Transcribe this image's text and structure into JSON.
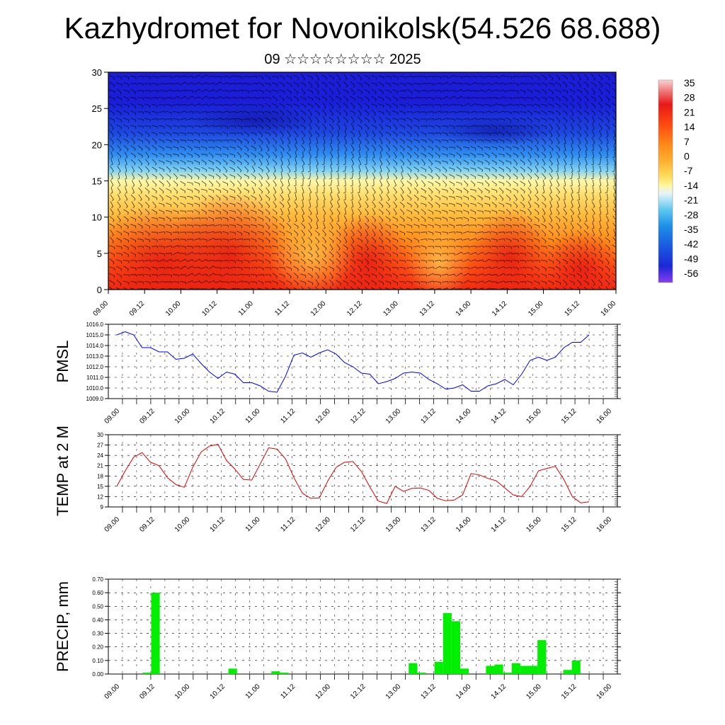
{
  "header": {
    "title": "Kazhydromet for Novonikolsk(54.526 68.688)",
    "subtitle": "09 ☆☆☆☆☆☆☆☆ 2025"
  },
  "time_ticks": [
    "09.00",
    "09.12",
    "10.00",
    "10.12",
    "11.00",
    "11.12",
    "12.00",
    "12.12",
    "13.00",
    "13.12",
    "14.00",
    "14.12",
    "15.00",
    "15.12",
    "16.00"
  ],
  "chart_data": [
    {
      "type": "heatmap",
      "name": "temperature-cross-section",
      "ylim": [
        0,
        30
      ],
      "yticks": [
        0,
        5,
        10,
        15,
        20,
        25,
        30
      ],
      "colorbar": {
        "labels": [
          "35",
          "28",
          "21",
          "14",
          "7",
          "0",
          "-7",
          "-14",
          "-21",
          "-28",
          "-35",
          "-42",
          "-49",
          "-56"
        ],
        "colors": [
          "#fbd3d3",
          "#e81818",
          "#ff4a10",
          "#ff7a10",
          "#ffa428",
          "#ffc84a",
          "#fff080",
          "#cfeaf5",
          "#5ec8f0",
          "#1e90e8",
          "#1a5ae0",
          "#1a28d8",
          "#2818c8",
          "#8a3cf0"
        ]
      }
    },
    {
      "type": "line",
      "name": "pmsl",
      "ylabel": "PMSL",
      "ylim": [
        1009.0,
        1016.0
      ],
      "yticks": [
        "1009.0",
        "1010.0",
        "1011.0",
        "1012.0",
        "1013.0",
        "1014.0",
        "1015.0",
        "1016.0"
      ],
      "color": "#0000ff",
      "values": [
        1015.0,
        1015.3,
        1015.0,
        1013.8,
        1013.8,
        1013.4,
        1013.4,
        1012.7,
        1012.8,
        1013.2,
        1012.3,
        1011.5,
        1010.9,
        1011.5,
        1011.3,
        1010.5,
        1010.5,
        1010.2,
        1009.7,
        1009.6,
        1011.1,
        1013.1,
        1013.3,
        1012.9,
        1013.3,
        1013.6,
        1013.2,
        1012.4,
        1012.0,
        1011.4,
        1011.3,
        1010.4,
        1010.6,
        1010.9,
        1011.4,
        1011.5,
        1011.4,
        1010.8,
        1010.4,
        1009.9,
        1010.0,
        1010.3,
        1009.7,
        1009.7,
        1010.2,
        1010.4,
        1010.8,
        1010.3,
        1011.3,
        1012.6,
        1012.9,
        1012.6,
        1012.9,
        1013.8,
        1014.3,
        1014.3,
        1015.0
      ]
    },
    {
      "type": "line",
      "name": "temp2m",
      "ylabel": "TEMP at 2 M",
      "ylim": [
        9,
        30
      ],
      "yticks": [
        "9",
        "12",
        "15",
        "18",
        "21",
        "24",
        "27",
        "30"
      ],
      "color": "#e00000",
      "values": [
        15,
        19.5,
        23.5,
        24.8,
        22,
        21,
        17.5,
        15.5,
        14.7,
        20.5,
        25,
        26.7,
        27.2,
        22.5,
        20,
        17,
        16.8,
        21.5,
        26.2,
        25.8,
        23,
        17.5,
        13,
        11.5,
        11.6,
        16.5,
        20.5,
        22,
        22.2,
        19.3,
        14.8,
        10.7,
        10,
        15,
        13.5,
        14.4,
        14.5,
        13.8,
        11.5,
        10.8,
        11,
        12.5,
        18.7,
        18.3,
        17.3,
        16.6,
        14.5,
        12.5,
        12,
        15,
        19.5,
        20.2,
        20.8,
        17,
        12,
        10.2,
        10.5
      ]
    },
    {
      "type": "bar",
      "name": "precip",
      "ylabel": "PRECIP, mm",
      "ylim": [
        0,
        0.7
      ],
      "yticks": [
        "0.00",
        "0.10",
        "0.20",
        "0.30",
        "0.40",
        "0.50",
        "0.60",
        "0.70"
      ],
      "color": "#00ee00",
      "values": [
        0,
        0,
        0,
        0.01,
        0.6,
        0,
        0,
        0,
        0,
        0,
        0,
        0,
        0,
        0.04,
        0,
        0,
        0,
        0,
        0.02,
        0.01,
        0,
        0,
        0,
        0,
        0,
        0,
        0,
        0,
        0,
        0,
        0,
        0,
        0,
        0,
        0.08,
        0.01,
        0,
        0.09,
        0.45,
        0.39,
        0.04,
        0,
        0,
        0.06,
        0.07,
        0.01,
        0.08,
        0.06,
        0.06,
        0.25,
        0,
        0,
        0.03,
        0.1,
        0,
        0
      ]
    }
  ]
}
